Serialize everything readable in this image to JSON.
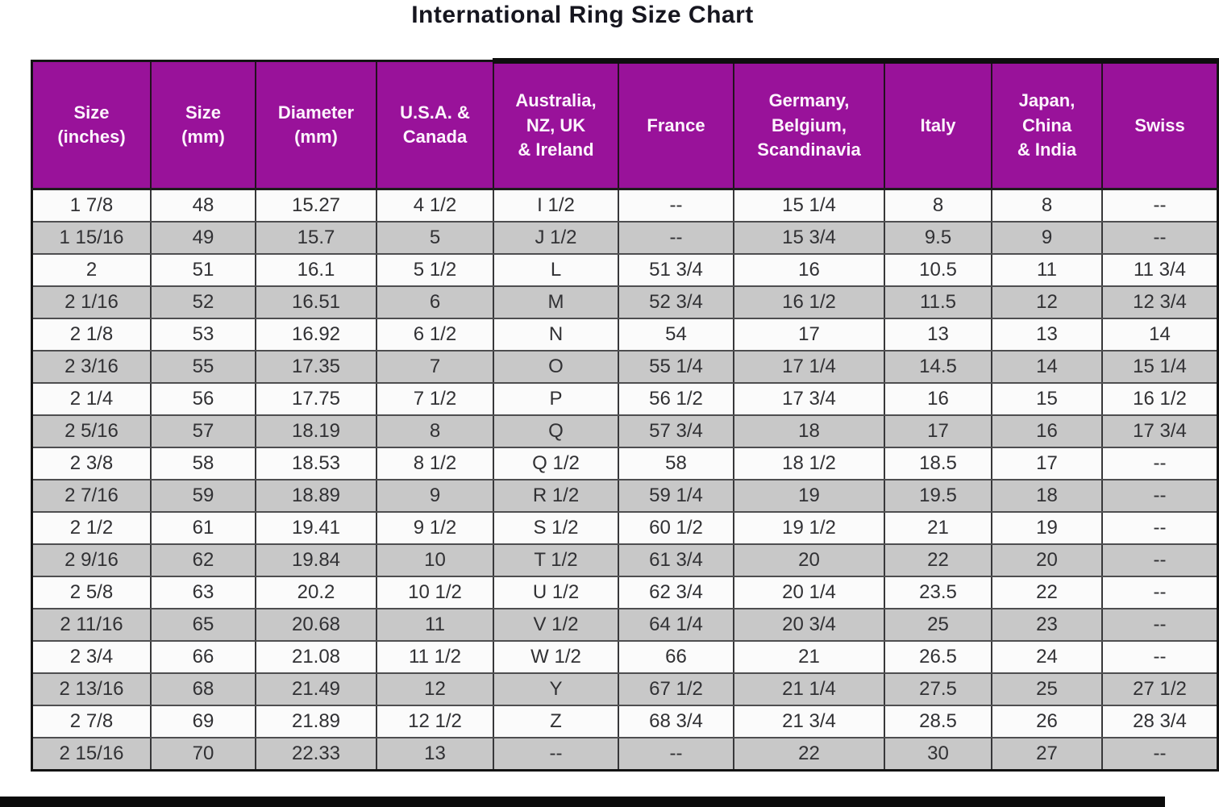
{
  "title": "International Ring Size Chart",
  "chart_data": {
    "type": "table",
    "title": "International Ring Size Chart",
    "columns": [
      {
        "id": "size-inches",
        "label": "Size\n(inches)",
        "width": 137
      },
      {
        "id": "size-mm",
        "label": "Size\n(mm)",
        "width": 120
      },
      {
        "id": "diameter-mm",
        "label": "Diameter\n(mm)",
        "width": 140
      },
      {
        "id": "usa-canada",
        "label": "U.S.A. &\nCanada",
        "width": 135
      },
      {
        "id": "australia-nz-uk-ireland",
        "label": "Australia,\nNZ, UK\n& Ireland",
        "width": 145
      },
      {
        "id": "france",
        "label": "France",
        "width": 133
      },
      {
        "id": "germany-belgium-scandinavia",
        "label": "Germany,\nBelgium,\nScandinavia",
        "width": 177
      },
      {
        "id": "italy",
        "label": "Italy",
        "width": 123
      },
      {
        "id": "japan-china-india",
        "label": "Japan,\nChina\n& India",
        "width": 127
      },
      {
        "id": "swiss",
        "label": "Swiss",
        "width": 133
      }
    ],
    "rows": [
      [
        "1 7/8",
        "48",
        "15.27",
        "4 1/2",
        "I 1/2",
        "--",
        "15 1/4",
        "8",
        "8",
        "--"
      ],
      [
        "1 15/16",
        "49",
        "15.7",
        "5",
        "J 1/2",
        "--",
        "15 3/4",
        "9.5",
        "9",
        "--"
      ],
      [
        "2",
        "51",
        "16.1",
        "5 1/2",
        "L",
        "51 3/4",
        "16",
        "10.5",
        "11",
        "11 3/4"
      ],
      [
        "2 1/16",
        "52",
        "16.51",
        "6",
        "M",
        "52 3/4",
        "16 1/2",
        "11.5",
        "12",
        "12 3/4"
      ],
      [
        "2 1/8",
        "53",
        "16.92",
        "6 1/2",
        "N",
        "54",
        "17",
        "13",
        "13",
        "14"
      ],
      [
        "2 3/16",
        "55",
        "17.35",
        "7",
        "O",
        "55 1/4",
        "17 1/4",
        "14.5",
        "14",
        "15 1/4"
      ],
      [
        "2 1/4",
        "56",
        "17.75",
        "7 1/2",
        "P",
        "56 1/2",
        "17 3/4",
        "16",
        "15",
        "16 1/2"
      ],
      [
        "2 5/16",
        "57",
        "18.19",
        "8",
        "Q",
        "57 3/4",
        "18",
        "17",
        "16",
        "17 3/4"
      ],
      [
        "2 3/8",
        "58",
        "18.53",
        "8 1/2",
        "Q 1/2",
        "58",
        "18 1/2",
        "18.5",
        "17",
        "--"
      ],
      [
        "2 7/16",
        "59",
        "18.89",
        "9",
        "R 1/2",
        "59 1/4",
        "19",
        "19.5",
        "18",
        "--"
      ],
      [
        "2 1/2",
        "61",
        "19.41",
        "9 1/2",
        "S 1/2",
        "60 1/2",
        "19 1/2",
        "21",
        "19",
        "--"
      ],
      [
        "2 9/16",
        "62",
        "19.84",
        "10",
        "T 1/2",
        "61 3/4",
        "20",
        "22",
        "20",
        "--"
      ],
      [
        "2 5/8",
        "63",
        "20.2",
        "10 1/2",
        "U 1/2",
        "62 3/4",
        "20 1/4",
        "23.5",
        "22",
        "--"
      ],
      [
        "2 11/16",
        "65",
        "20.68",
        "11",
        "V 1/2",
        "64 1/4",
        "20 3/4",
        "25",
        "23",
        "--"
      ],
      [
        "2 3/4",
        "66",
        "21.08",
        "11 1/2",
        "W 1/2",
        "66",
        "21",
        "26.5",
        "24",
        "--"
      ],
      [
        "2 13/16",
        "68",
        "21.49",
        "12",
        "Y",
        "67 1/2",
        "21 1/4",
        "27.5",
        "25",
        "27 1/2"
      ],
      [
        "2 7/8",
        "69",
        "21.89",
        "12 1/2",
        "Z",
        "68 3/4",
        "21 3/4",
        "28.5",
        "26",
        "28 3/4"
      ],
      [
        "2 15/16",
        "70",
        "22.33",
        "13",
        "--",
        "--",
        "22",
        "30",
        "27",
        "--"
      ]
    ],
    "layout_hints": {
      "header_bg": "#99129a",
      "header_text": "#ffffff",
      "row_bg_odd": "#fbfbfb",
      "row_bg_even": "#c8c8c8",
      "grid": true
    }
  }
}
